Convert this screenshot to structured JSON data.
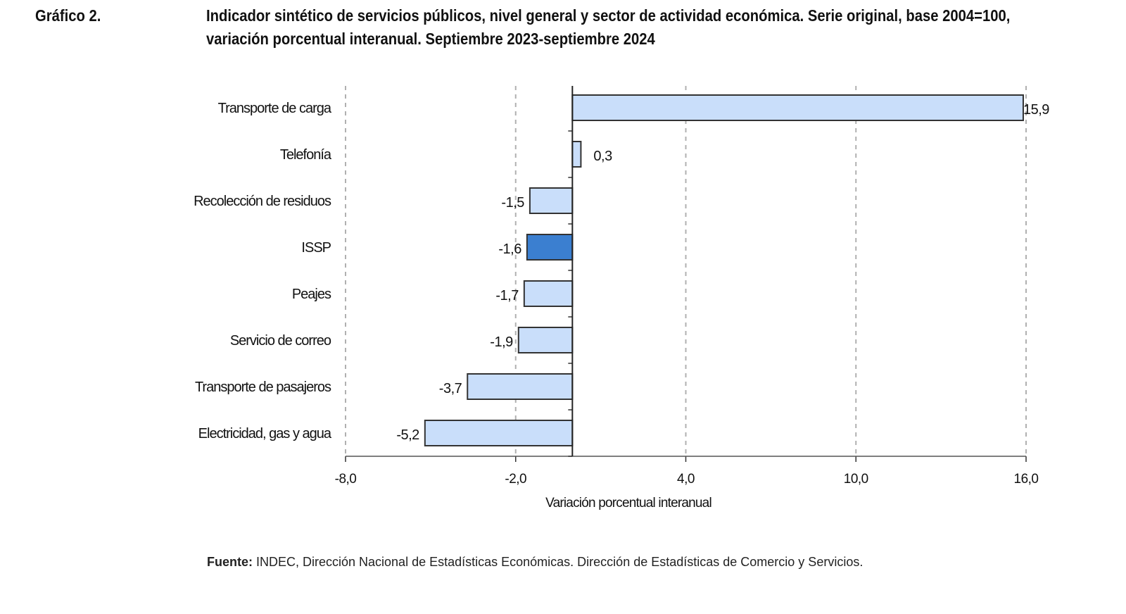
{
  "figure": {
    "number": "Gráfico 2.",
    "title": "Indicador sintético de servicios públicos, nivel general y sector de actividad económica. Serie original, base 2004=100, variación porcentual interanual. Septiembre 2023-septiembre 2024",
    "source_label": "Fuente:",
    "source_text": " INDEC, Dirección Nacional de Estadísticas Económicas. Dirección de Estadísticas de Comercio y Servicios."
  },
  "chart_data": {
    "type": "bar",
    "orientation": "horizontal",
    "categories": [
      "Transporte de carga",
      "Telefonía",
      "Recolección de residuos",
      "ISSP",
      "Peajes",
      "Servicio de correo",
      "Transporte de pasajeros",
      "Electricidad, gas y agua"
    ],
    "values": [
      15.9,
      0.3,
      -1.5,
      -1.6,
      -1.7,
      -1.9,
      -3.7,
      -5.2
    ],
    "value_labels": [
      "15,9",
      "0,3",
      "-1,5",
      "-1,6",
      "-1,7",
      "-1,9",
      "-3,7",
      "-5,2"
    ],
    "highlight": "ISSP",
    "xlabel": "Variación porcentual interanual",
    "xlim": [
      -8,
      16
    ],
    "xticks": [
      -8,
      -2,
      4,
      10,
      16
    ],
    "xtick_labels": [
      "-8,0",
      "-2,0",
      "4,0",
      "10,0",
      "16,0"
    ],
    "grid": true,
    "colors": {
      "bar": "#c9defa",
      "highlight": "#3b7fd0",
      "border": "#333333",
      "grid": "#b0b0b0"
    }
  }
}
